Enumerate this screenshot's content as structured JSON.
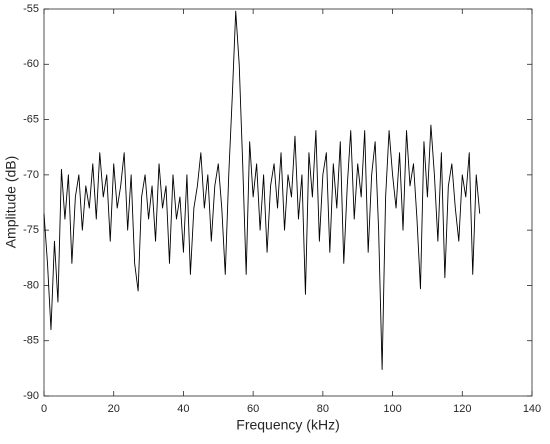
{
  "chart_data": {
    "type": "line",
    "x_label": "Frequency (kHz)",
    "y_label": "Amplitude (dB)",
    "x": [
      0,
      1,
      2,
      3,
      4,
      5,
      6,
      7,
      8,
      9,
      10,
      11,
      12,
      13,
      14,
      15,
      16,
      17,
      18,
      19,
      20,
      21,
      22,
      23,
      24,
      25,
      26,
      27,
      28,
      29,
      30,
      31,
      32,
      33,
      34,
      35,
      36,
      37,
      38,
      39,
      40,
      41,
      42,
      43,
      44,
      45,
      46,
      47,
      48,
      49,
      50,
      51,
      52,
      53,
      54,
      55,
      56,
      57,
      58,
      59,
      60,
      61,
      62,
      63,
      64,
      65,
      66,
      67,
      68,
      69,
      70,
      71,
      72,
      73,
      74,
      75,
      76,
      77,
      78,
      79,
      80,
      81,
      82,
      83,
      84,
      85,
      86,
      87,
      88,
      89,
      90,
      91,
      92,
      93,
      94,
      95,
      96,
      97,
      98,
      99,
      100,
      101,
      102,
      103,
      104,
      105,
      106,
      107,
      108,
      109,
      110,
      111,
      112,
      113,
      114,
      115,
      116,
      117,
      118,
      119,
      120,
      121,
      122,
      123,
      124,
      125
    ],
    "series": [
      {
        "color": "#000000",
        "values": [
          -73.5,
          -78,
          -84,
          -76,
          -81.5,
          -69.5,
          -74,
          -70,
          -78,
          -72,
          -70,
          -75,
          -71,
          -73,
          -69,
          -74,
          -68,
          -72,
          -70,
          -76,
          -69,
          -73,
          -71,
          -68,
          -75,
          -70,
          -78,
          -80.5,
          -72,
          -70,
          -74,
          -71,
          -76,
          -69,
          -73,
          -71,
          -78,
          -70,
          -74,
          -72,
          -77,
          -70,
          -79,
          -73,
          -71,
          -68,
          -73,
          -70,
          -76,
          -71,
          -69,
          -73,
          -79,
          -70,
          -63,
          -55.2,
          -60,
          -69,
          -79,
          -67,
          -72,
          -69,
          -75,
          -70,
          -77,
          -71,
          -69,
          -73,
          -68,
          -75,
          -70,
          -72,
          -66.5,
          -74,
          -70,
          -80.8,
          -68,
          -72,
          -66,
          -76,
          -70,
          -68,
          -77,
          -69,
          -73,
          -67,
          -78,
          -71,
          -66,
          -74,
          -69,
          -72,
          -66,
          -77,
          -70,
          -67,
          -75,
          -87.6,
          -72,
          -66,
          -70,
          -73,
          -68,
          -75,
          -66,
          -71,
          -69,
          -74,
          -80.3,
          -67,
          -72,
          -65.5,
          -70,
          -76,
          -68,
          -79.3,
          -71,
          -69,
          -73,
          -76,
          -70,
          -72,
          -68,
          -79,
          -70,
          -73.5
        ]
      }
    ],
    "xlim": [
      0,
      140
    ],
    "ylim": [
      -90,
      -55
    ],
    "xticks": [
      0,
      20,
      40,
      60,
      80,
      100,
      120,
      140
    ],
    "yticks": [
      -90,
      -85,
      -80,
      -75,
      -70,
      -65,
      -60,
      -55
    ]
  }
}
